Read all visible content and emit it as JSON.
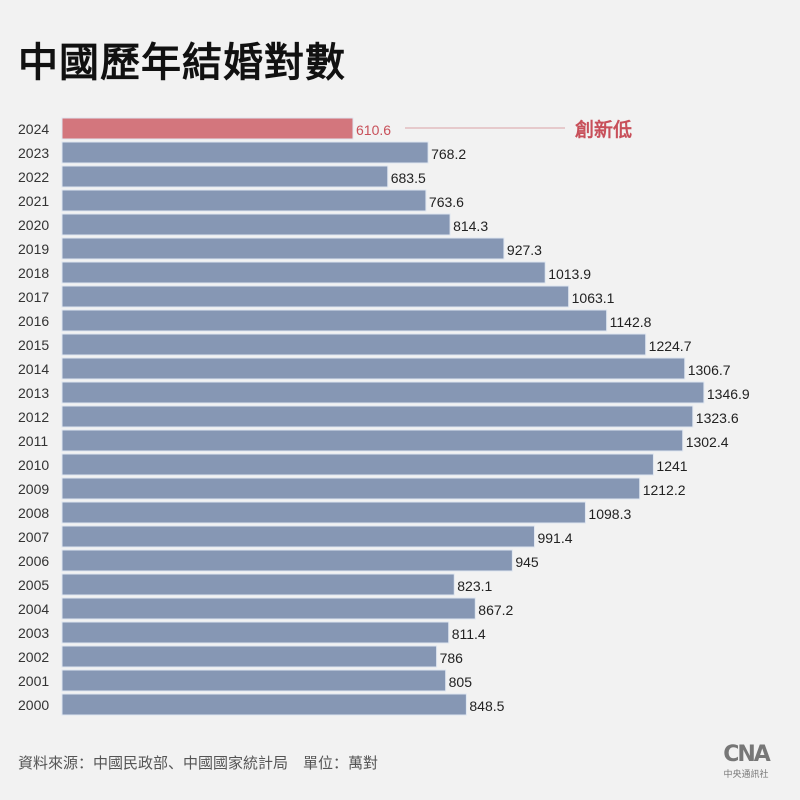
{
  "title": "中國歷年結婚對數",
  "source": "資料來源：中國民政部、中國國家統計局　單位：萬對",
  "logo": {
    "text": "CNA",
    "sub": "中央通訊社"
  },
  "colors": {
    "bar": "#8697b4",
    "highlight": "#d3767d",
    "highlight_text": "#c8505a",
    "bar_border": "#dfe6f0"
  },
  "chart_data": {
    "type": "bar",
    "orientation": "horizontal",
    "title": "中國歷年結婚對數",
    "unit": "萬對",
    "categories": [
      "2024",
      "2023",
      "2022",
      "2021",
      "2020",
      "2019",
      "2018",
      "2017",
      "2016",
      "2015",
      "2014",
      "2013",
      "2012",
      "2011",
      "2010",
      "2009",
      "2008",
      "2007",
      "2006",
      "2005",
      "2004",
      "2003",
      "2002",
      "2001",
      "2000"
    ],
    "values": [
      610.6,
      768.2,
      683.5,
      763.6,
      814.3,
      927.3,
      1013.9,
      1063.1,
      1142.8,
      1224.7,
      1306.7,
      1346.9,
      1323.6,
      1302.4,
      1241,
      1212.2,
      1098.3,
      991.4,
      945,
      823.1,
      867.2,
      811.4,
      786,
      805,
      848.5
    ],
    "labels": [
      "610.6",
      "768.2",
      "683.5",
      "763.6",
      "814.3",
      "927.3",
      "1013.9",
      "1063.1",
      "1142.8",
      "1224.7",
      "1306.7",
      "1346.9",
      "1323.6",
      "1302.4",
      "1241",
      "1212.2",
      "1098.3",
      "991.4",
      "945",
      "823.1",
      "867.2",
      "811.4",
      "786",
      "805",
      "848.5"
    ],
    "highlight_index": 0,
    "annotation": "創新低",
    "xlim": [
      0,
      1400
    ]
  }
}
